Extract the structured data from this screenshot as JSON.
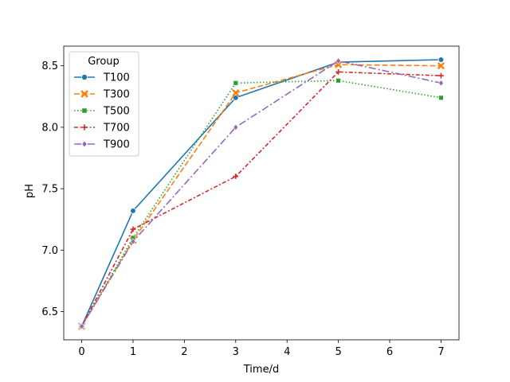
{
  "chart_data": {
    "type": "line",
    "title": "",
    "xlabel": "Time/d",
    "ylabel": "pH",
    "xlim": [
      -0.35,
      7.35
    ],
    "ylim": [
      6.27,
      8.66
    ],
    "x_ticks": [
      0,
      1,
      2,
      3,
      4,
      5,
      6,
      7
    ],
    "y_ticks": [
      6.5,
      7.0,
      7.5,
      8.0,
      8.5
    ],
    "y_tick_labels": [
      "6.5",
      "7.0",
      "7.5",
      "8.0",
      "8.5"
    ],
    "grid": false,
    "legend": {
      "title": "Group",
      "placement": "top-left"
    },
    "x": [
      0,
      1,
      3,
      5,
      7
    ],
    "series": [
      {
        "name": "T100",
        "color": "#1f77b4",
        "dash": "solid",
        "marker": "circle",
        "values": [
          6.38,
          7.32,
          8.24,
          8.53,
          8.55
        ]
      },
      {
        "name": "T300",
        "color": "#ff7f0e",
        "dash": "dashed",
        "marker": "x",
        "values": [
          6.38,
          7.08,
          8.28,
          8.51,
          8.5
        ]
      },
      {
        "name": "T500",
        "color": "#2ca02c",
        "dash": "dotted",
        "marker": "square",
        "values": [
          6.38,
          7.1,
          8.36,
          8.38,
          8.24
        ]
      },
      {
        "name": "T700",
        "color": "#d62728",
        "dash": "dashdot2",
        "marker": "plus",
        "values": [
          6.38,
          7.17,
          7.6,
          8.45,
          8.42
        ]
      },
      {
        "name": "T900",
        "color": "#9467bd",
        "dash": "dashdot",
        "marker": "diamond",
        "values": [
          6.38,
          7.07,
          8.0,
          8.54,
          8.36
        ]
      }
    ]
  }
}
